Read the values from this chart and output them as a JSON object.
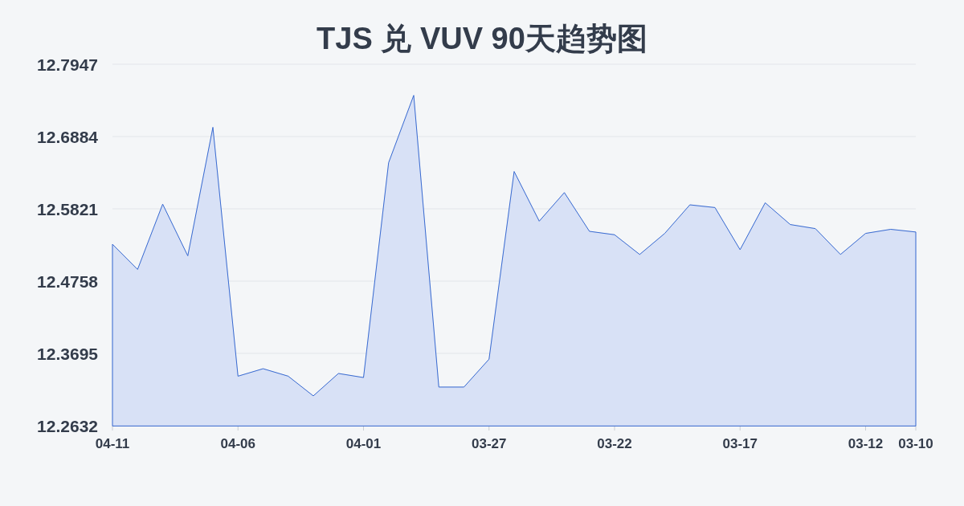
{
  "chart_data": {
    "type": "area",
    "title": "TJS 兑 VUV 90天趋势图",
    "categories": [
      "04-11",
      null,
      null,
      null,
      null,
      "04-06",
      null,
      null,
      null,
      null,
      "04-01",
      null,
      null,
      null,
      null,
      "03-27",
      null,
      null,
      null,
      null,
      "03-22",
      null,
      null,
      null,
      null,
      "03-17",
      null,
      null,
      null,
      null,
      "03-12",
      null,
      "03-10"
    ],
    "series": [
      {
        "color": "#3a6bd1",
        "values": [
          12.53,
          12.493,
          12.589,
          12.513,
          12.702,
          12.336,
          12.347,
          12.336,
          12.307,
          12.34,
          12.334,
          12.65,
          12.749,
          12.32,
          12.32,
          12.361,
          12.637,
          12.564,
          12.606,
          12.549,
          12.544,
          12.515,
          12.546,
          12.588,
          12.584,
          12.522,
          12.591,
          12.559,
          12.553,
          12.515,
          12.546,
          12.552,
          12.548
        ]
      }
    ],
    "ylim": [
      12.2632,
      12.7947
    ],
    "yticks": [
      12.2632,
      12.3695,
      12.4758,
      12.5821,
      12.6884,
      12.7947
    ],
    "grid": "y"
  }
}
